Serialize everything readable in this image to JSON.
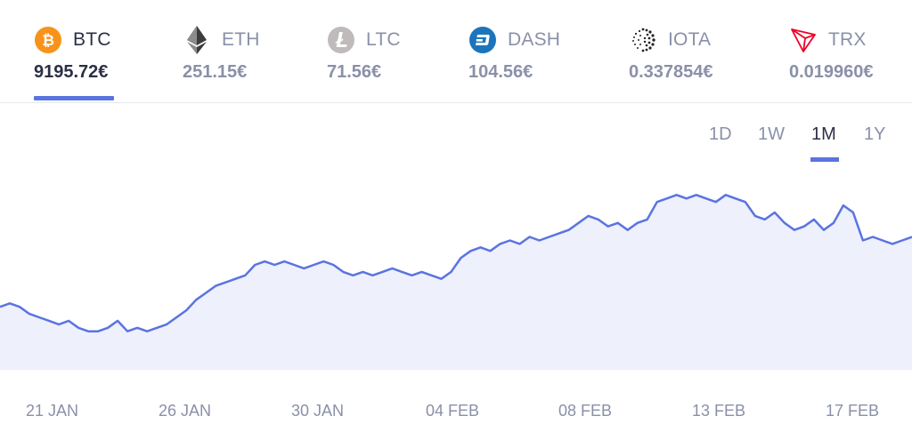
{
  "coins": [
    {
      "symbol": "BTC",
      "price": "9195.72€",
      "icon": "bitcoin-icon",
      "color": "#f7931a"
    },
    {
      "symbol": "ETH",
      "price": "251.15€",
      "icon": "ethereum-icon",
      "color": "#3c3c3d"
    },
    {
      "symbol": "LTC",
      "price": "71.56€",
      "icon": "litecoin-icon",
      "color": "#bfbbbb"
    },
    {
      "symbol": "DASH",
      "price": "104.56€",
      "icon": "dash-icon",
      "color": "#1c75bc"
    },
    {
      "symbol": "IOTA",
      "price": "0.337854€",
      "icon": "iota-icon",
      "color": "#242424"
    },
    {
      "symbol": "TRX",
      "price": "0.019960€",
      "icon": "tron-icon",
      "color": "#ef0027"
    }
  ],
  "ranges": [
    "1D",
    "1W",
    "1M",
    "1Y"
  ],
  "selected_range": "1M",
  "selected_coin": "BTC",
  "colors": {
    "accent": "#5a74e0",
    "area_fill": "#eef0fb",
    "line": "#5a74e0"
  },
  "chart_data": {
    "type": "area",
    "x_labels": [
      "21 JAN",
      "26 JAN",
      "30 JAN",
      "04 FEB",
      "08 FEB",
      "13 FEB",
      "17 FEB"
    ],
    "values": [
      48,
      49,
      48,
      46,
      45,
      44,
      43,
      44,
      42,
      41,
      41,
      42,
      44,
      41,
      42,
      41,
      42,
      43,
      45,
      47,
      50,
      52,
      54,
      55,
      56,
      57,
      60,
      61,
      60,
      61,
      60,
      59,
      60,
      61,
      60,
      58,
      57,
      58,
      57,
      58,
      59,
      58,
      57,
      58,
      57,
      56,
      58,
      62,
      64,
      65,
      64,
      66,
      67,
      66,
      68,
      67,
      68,
      69,
      70,
      72,
      74,
      73,
      71,
      72,
      70,
      72,
      73,
      78,
      79,
      80,
      79,
      80,
      79,
      78,
      80,
      79,
      78,
      74,
      73,
      75,
      72,
      70,
      71,
      73,
      70,
      72,
      77,
      75,
      67,
      68,
      67,
      66,
      67,
      68
    ],
    "ylim": [
      30,
      90
    ],
    "grid": false,
    "legend": "none"
  }
}
